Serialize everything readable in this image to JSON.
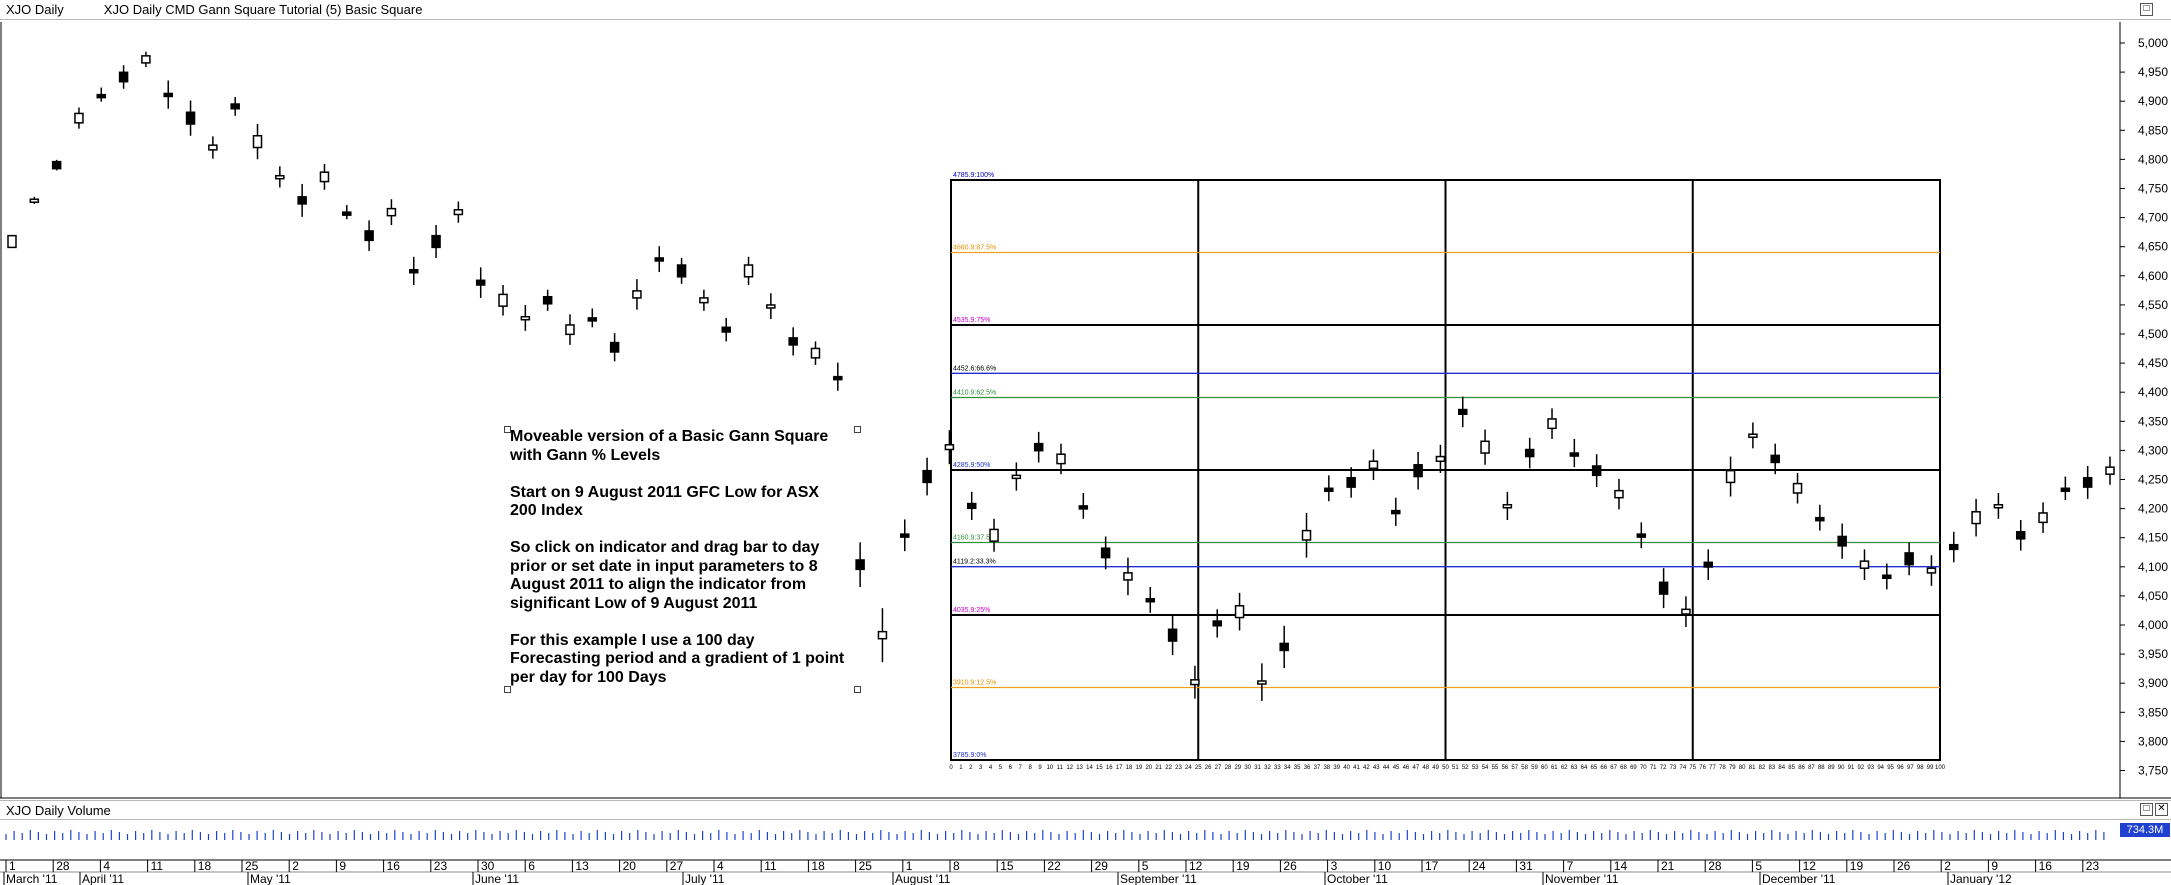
{
  "main_pane": {
    "title_left": "XJO  Daily",
    "title_right": "XJO  Daily  CMD Gann Square Tutorial (5) Basic Square",
    "buttons": [
      "□"
    ]
  },
  "volume_pane": {
    "title": "XJO  Daily  Volume",
    "buttons": [
      "□",
      "✕"
    ],
    "badge": "734.3M"
  },
  "annotation": {
    "text": "Moveable version of a Basic Gann Square\nwith Gann % Levels\n\nStart on 9 August 2011 GFC Low for ASX\n200 Index\n\nSo click on indicator and drag bar to day\nprior  or set date in input parameters to 8\nAugust 2011 to align the indicator from\nsignificant Low of 9 August 2011\n\nFor this example I use a 100 day\nForecasting period and a gradient of 1 point\nper day for 100 Days"
  },
  "chart_data": {
    "type": "candlestick",
    "y_axis_ticks": [
      5000,
      4950,
      4900,
      4850,
      4800,
      4750,
      4700,
      4650,
      4600,
      4550,
      4500,
      4450,
      4400,
      4350,
      4300,
      4250,
      4200,
      4150,
      4100,
      4050,
      4000,
      3950,
      3900,
      3850,
      3800,
      3750
    ],
    "y_axis_labels": [
      "5,000",
      "4,950",
      "4,900",
      "4,850",
      "4,800",
      "4,750",
      "4,700",
      "4,650",
      "4,600",
      "4,550",
      "4,500",
      "4,450",
      "4,400",
      "4,350",
      "4,300",
      "4,250",
      "4,200",
      "4,150",
      "4,100",
      "4,050",
      "4,000",
      "3,950",
      "3,900",
      "3,850",
      "3,800",
      "3,750"
    ],
    "ylim": [
      3725,
      5010
    ],
    "x_axis_day_labels": [
      "1",
      "28",
      "4",
      "11",
      "18",
      "25",
      "2",
      "9",
      "16",
      "23",
      "30",
      "6",
      "13",
      "20",
      "27",
      "4",
      "11",
      "18",
      "25",
      "1",
      "8",
      "15",
      "22",
      "29",
      "5",
      "12",
      "19",
      "26",
      "3",
      "10",
      "17",
      "24",
      "31",
      "7",
      "14",
      "21",
      "28",
      "5",
      "12",
      "19",
      "26",
      "2",
      "9",
      "16",
      "23"
    ],
    "x_axis_month_labels": [
      "March '11",
      "April '11",
      "May '11",
      "June '11",
      "July '11",
      "August '11",
      "September '11",
      "October '11",
      "November '11",
      "December '11",
      "January '12"
    ],
    "gann_square": {
      "price_low": 3785.9,
      "price_high": 4785.9,
      "days": 100,
      "levels": [
        {
          "label": "4785.9:100%",
          "price": 4785.9,
          "color": "#000000",
          "label_color": "#0000cc"
        },
        {
          "label": "4660.9:87.5%",
          "price": 4660.9,
          "color": "#f0a020",
          "label_color": "#e09000"
        },
        {
          "label": "4535.9:75%",
          "price": 4535.9,
          "color": "#000000",
          "label_color": "#cc00cc"
        },
        {
          "label": "4452.6:66.6%",
          "price": 4452.6,
          "color": "#2030d0",
          "label_color": "#000000"
        },
        {
          "label": "4410.9:62.5%",
          "price": 4410.9,
          "color": "#309040",
          "label_color": "#309040"
        },
        {
          "label": "4285.9:50%",
          "price": 4285.9,
          "color": "#000000",
          "label_color": "#2030d0"
        },
        {
          "label": "4160.9:37.5%",
          "price": 4160.9,
          "color": "#309040",
          "label_color": "#309040"
        },
        {
          "label": "4119.2:33.3%",
          "price": 4119.2,
          "color": "#2030d0",
          "label_color": "#000000"
        },
        {
          "label": "4035.9:25%",
          "price": 4035.9,
          "color": "#000000",
          "label_color": "#cc00cc"
        },
        {
          "label": "3910.9:12.5%",
          "price": 3910.9,
          "color": "#f0a020",
          "label_color": "#e09000"
        },
        {
          "label": "3785.9:0%",
          "price": 3785.9,
          "color": "#000000",
          "label_color": "#2030d0"
        }
      ]
    },
    "volume_series": "uniform blue volume bars"
  }
}
